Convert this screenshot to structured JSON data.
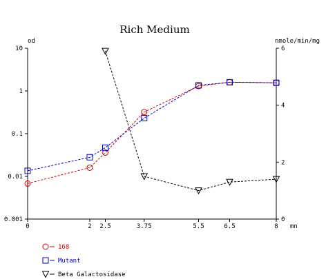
{
  "chart_data": {
    "type": "line",
    "title": "Rich Medium",
    "xlabel": "mn",
    "ylabel_left": "od",
    "ylabel_right": "nmole/min/mg",
    "x_ticks": [
      "0",
      "2",
      "2.5",
      "3.75",
      "5.5",
      "6.5",
      "8"
    ],
    "x_tick_values": [
      0,
      2,
      2.5,
      3.75,
      5.5,
      6.5,
      8
    ],
    "xlim": [
      0,
      8
    ],
    "y_left": {
      "scale": "log",
      "lim": [
        0.001,
        10
      ],
      "ticks": [
        "0.001",
        "0.01",
        "0.1",
        "1",
        "10"
      ],
      "tick_values": [
        0.001,
        0.01,
        0.1,
        1,
        10
      ]
    },
    "y_right": {
      "scale": "linear",
      "lim": [
        0,
        6
      ],
      "ticks": [
        "0",
        "2",
        "4",
        "6"
      ],
      "tick_values": [
        0,
        2,
        4,
        6
      ]
    },
    "grid": false,
    "legend_position": "bottom-left",
    "series": [
      {
        "name": "168",
        "axis": "left",
        "color": "#cc0000",
        "marker": "circle",
        "x": [
          0,
          2,
          2.5,
          3.75,
          5.5,
          6.5,
          8
        ],
        "y": [
          0.0068,
          0.016,
          0.036,
          0.32,
          1.3,
          1.6,
          1.55
        ]
      },
      {
        "name": "Mutant",
        "axis": "left",
        "color": "#0000cc",
        "marker": "square",
        "x": [
          0,
          2,
          2.5,
          3.75,
          5.5,
          6.5,
          8
        ],
        "y": [
          0.0135,
          0.028,
          0.047,
          0.23,
          1.35,
          1.6,
          1.55
        ]
      },
      {
        "name": "Beta Galactosidase",
        "axis": "right",
        "color": "#000000",
        "marker": "triangle-down",
        "x": [
          2.5,
          3.75,
          5.5,
          6.5,
          8
        ],
        "y": [
          5.9,
          1.5,
          1.0,
          1.3,
          1.4
        ]
      }
    ]
  }
}
